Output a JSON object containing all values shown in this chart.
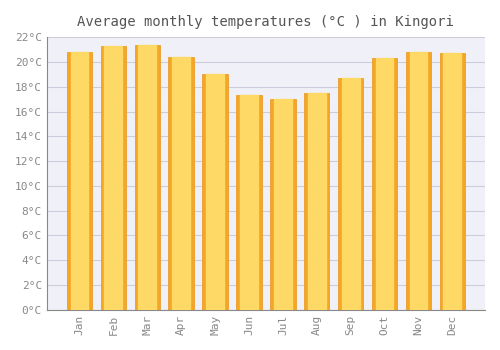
{
  "title": "Average monthly temperatures (°C ) in Kingori",
  "months": [
    "Jan",
    "Feb",
    "Mar",
    "Apr",
    "May",
    "Jun",
    "Jul",
    "Aug",
    "Sep",
    "Oct",
    "Nov",
    "Dec"
  ],
  "values": [
    20.8,
    21.3,
    21.4,
    20.4,
    19.0,
    17.3,
    17.0,
    17.5,
    18.7,
    20.3,
    20.8,
    20.7
  ],
  "bar_color_left": "#F5A623",
  "bar_color_right": "#FFD966",
  "ylim": [
    0,
    22
  ],
  "yticks": [
    0,
    2,
    4,
    6,
    8,
    10,
    12,
    14,
    16,
    18,
    20,
    22
  ],
  "ytick_labels": [
    "0°C",
    "2°C",
    "4°C",
    "6°C",
    "8°C",
    "10°C",
    "12°C",
    "14°C",
    "16°C",
    "18°C",
    "20°C",
    "22°C"
  ],
  "background_color": "#ffffff",
  "plot_bg_color": "#f0f0f8",
  "grid_color": "#ccccdd",
  "title_fontsize": 10,
  "tick_fontsize": 8,
  "bar_width": 0.75,
  "font_family": "monospace",
  "title_color": "#555555",
  "tick_color": "#888888"
}
